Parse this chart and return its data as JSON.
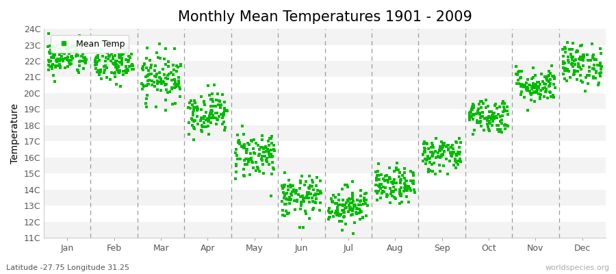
{
  "title": "Monthly Mean Temperatures 1901 - 2009",
  "ylabel": "Temperature",
  "xlabel_bottom": "Latitude -27.75 Longitude 31.25",
  "watermark": "worldspecies.org",
  "legend_label": "Mean Temp",
  "ylim": [
    11,
    24
  ],
  "ytick_labels": [
    "11C",
    "12C",
    "13C",
    "14C",
    "15C",
    "16C",
    "17C",
    "18C",
    "19C",
    "20C",
    "21C",
    "22C",
    "23C",
    "24C"
  ],
  "months": [
    "Jan",
    "Feb",
    "Mar",
    "Apr",
    "May",
    "Jun",
    "Jul",
    "Aug",
    "Sep",
    "Oct",
    "Nov",
    "Dec"
  ],
  "n_years": 109,
  "start_year": 1901,
  "monthly_means": [
    22.2,
    21.8,
    21.0,
    18.8,
    16.2,
    13.5,
    13.0,
    14.2,
    16.2,
    18.6,
    20.5,
    21.8
  ],
  "monthly_stds": [
    0.55,
    0.65,
    0.75,
    0.65,
    0.75,
    0.65,
    0.6,
    0.55,
    0.55,
    0.55,
    0.55,
    0.65
  ],
  "marker_color": "#00bb00",
  "marker_size": 5,
  "background_color": "#ffffff",
  "band_color_odd": "#f3f3f3",
  "band_color_even": "#ffffff",
  "dashed_line_color": "#999999",
  "title_fontsize": 15,
  "axis_fontsize": 10,
  "tick_fontsize": 9,
  "legend_fontsize": 9
}
